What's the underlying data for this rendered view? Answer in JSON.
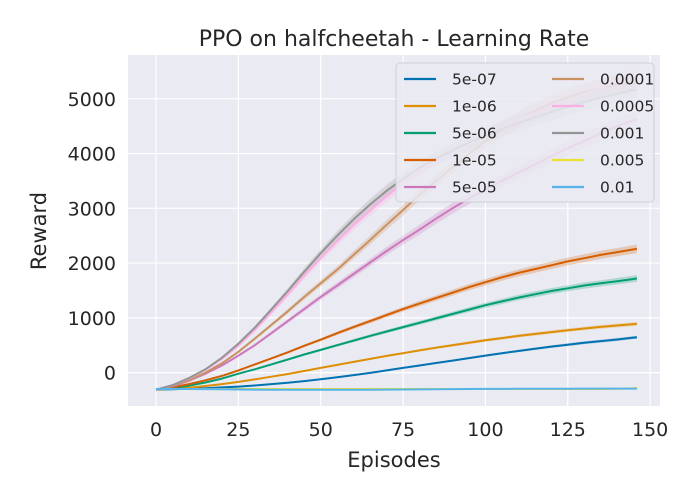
{
  "chart_data": {
    "type": "line",
    "title": "PPO on halfcheetah - Learning Rate",
    "xlabel": "Episodes",
    "ylabel": "Reward",
    "xlim": [
      -8.5,
      153
    ],
    "ylim": [
      -610,
      5800
    ],
    "xticks": [
      0,
      25,
      50,
      75,
      100,
      125,
      150
    ],
    "yticks": [
      0,
      1000,
      2000,
      3000,
      4000,
      5000
    ],
    "grid": true,
    "legend_position": "top-right",
    "legend_columns": 2,
    "x": [
      0,
      5,
      10,
      15,
      20,
      25,
      30,
      35,
      40,
      45,
      50,
      55,
      60,
      65,
      70,
      75,
      80,
      85,
      90,
      95,
      100,
      105,
      110,
      115,
      120,
      125,
      130,
      135,
      140,
      145,
      146
    ],
    "series": [
      {
        "name": "5e-07",
        "color": "#0173b2",
        "values": [
          -310,
          -305,
          -295,
          -285,
          -270,
          -255,
          -235,
          -210,
          -185,
          -155,
          -120,
          -85,
          -45,
          -5,
          40,
          85,
          130,
          175,
          220,
          265,
          310,
          355,
          395,
          435,
          475,
          510,
          545,
          575,
          605,
          640,
          645
        ]
      },
      {
        "name": "1e-06",
        "color": "#de8f05",
        "values": [
          -310,
          -295,
          -275,
          -245,
          -210,
          -170,
          -125,
          -75,
          -25,
          30,
          85,
          140,
          195,
          250,
          305,
          355,
          405,
          455,
          500,
          545,
          590,
          630,
          670,
          705,
          740,
          775,
          805,
          835,
          860,
          885,
          890
        ]
      },
      {
        "name": "5e-06",
        "color": "#029e73",
        "values": [
          -310,
          -280,
          -240,
          -180,
          -110,
          -20,
          60,
          150,
          240,
          330,
          415,
          500,
          585,
          670,
          750,
          830,
          910,
          990,
          1070,
          1150,
          1230,
          1300,
          1370,
          1430,
          1490,
          1540,
          1590,
          1630,
          1670,
          1710,
          1720
        ]
      },
      {
        "name": "1e-05",
        "color": "#d55e00",
        "values": [
          -310,
          -270,
          -210,
          -140,
          -60,
          40,
          150,
          260,
          370,
          490,
          600,
          720,
          830,
          940,
          1050,
          1160,
          1260,
          1360,
          1460,
          1560,
          1650,
          1740,
          1820,
          1890,
          1960,
          2030,
          2090,
          2150,
          2200,
          2250,
          2260
        ]
      },
      {
        "name": "5e-05",
        "color": "#cc78bc",
        "values": [
          -310,
          -250,
          -150,
          -20,
          130,
          310,
          500,
          720,
          940,
          1160,
          1380,
          1590,
          1800,
          2010,
          2220,
          2420,
          2610,
          2810,
          3000,
          3180,
          3340,
          3500,
          3650,
          3800,
          3950,
          4100,
          4230,
          4370,
          4500,
          4610,
          4630
        ]
      },
      {
        "name": "0.0001",
        "color": "#ca9161",
        "values": [
          -310,
          -240,
          -140,
          0,
          170,
          380,
          620,
          870,
          1120,
          1380,
          1630,
          1880,
          2150,
          2420,
          2700,
          2970,
          3250,
          3500,
          3750,
          3990,
          4230,
          4440,
          4620,
          4780,
          4920,
          5030,
          5120,
          5200,
          5260,
          5300,
          5310
        ]
      },
      {
        "name": "0.0005",
        "color": "#fbafe4",
        "values": [
          -310,
          -230,
          -110,
          50,
          250,
          490,
          780,
          1100,
          1430,
          1770,
          2090,
          2400,
          2690,
          2960,
          3220,
          3460,
          3680,
          3870,
          4040,
          4200,
          4350,
          4490,
          4620,
          4740,
          4860,
          4980,
          5090,
          5200,
          5300,
          5400,
          5410
        ]
      },
      {
        "name": "0.001",
        "color": "#949494",
        "values": [
          -310,
          -230,
          -100,
          60,
          270,
          530,
          820,
          1150,
          1490,
          1840,
          2180,
          2500,
          2800,
          3070,
          3320,
          3540,
          3740,
          3910,
          4060,
          4200,
          4330,
          4450,
          4560,
          4660,
          4760,
          4850,
          4940,
          5020,
          5090,
          5160,
          5170
        ]
      },
      {
        "name": "0.005",
        "color": "#ece133",
        "values": [
          -300,
          -300,
          -300,
          -300,
          -300,
          -300,
          -300,
          -300,
          -300,
          -300,
          -300,
          -300,
          -300,
          -300,
          -300,
          -300,
          -300,
          -300,
          -300,
          -300,
          -300,
          -300,
          -300,
          -300,
          -300,
          -300,
          -300,
          -300,
          -295,
          -285,
          -280
        ]
      },
      {
        "name": "0.01",
        "color": "#56b4e9",
        "values": [
          -300,
          -300,
          -300,
          -302,
          -305,
          -308,
          -310,
          -312,
          -314,
          -315,
          -315,
          -315,
          -314,
          -312,
          -310,
          -308,
          -306,
          -304,
          -302,
          -300,
          -298,
          -297,
          -296,
          -295,
          -294,
          -294,
          -293,
          -293,
          -292,
          -292,
          -292
        ]
      }
    ]
  }
}
